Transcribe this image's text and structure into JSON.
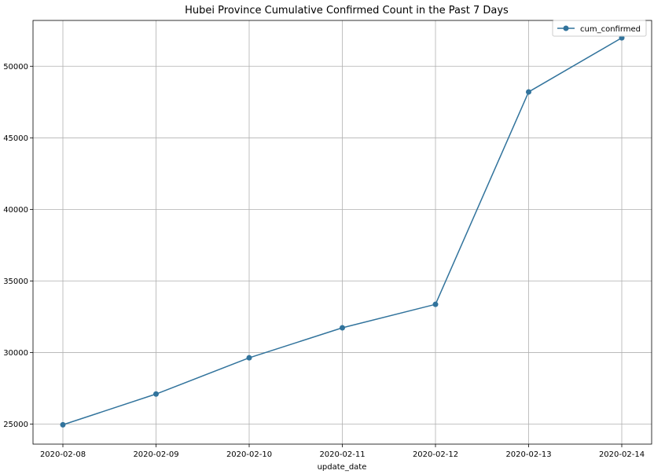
{
  "chart_data": {
    "type": "line",
    "title": "Hubei Province Cumulative Confirmed Count in the Past 7 Days",
    "xlabel": "update_date",
    "ylabel": "",
    "categories": [
      "2020-02-08",
      "2020-02-09",
      "2020-02-10",
      "2020-02-11",
      "2020-02-12",
      "2020-02-13",
      "2020-02-14"
    ],
    "series": [
      {
        "name": "cum_confirmed",
        "values": [
          24953,
          27100,
          29631,
          31728,
          33366,
          48206,
          51986
        ],
        "color": "#31739c",
        "marker": "circle"
      }
    ],
    "ylim": [
      23600,
      53200
    ],
    "yticks": [
      25000,
      30000,
      35000,
      40000,
      45000,
      50000
    ],
    "grid": true,
    "legend": "top-right"
  }
}
